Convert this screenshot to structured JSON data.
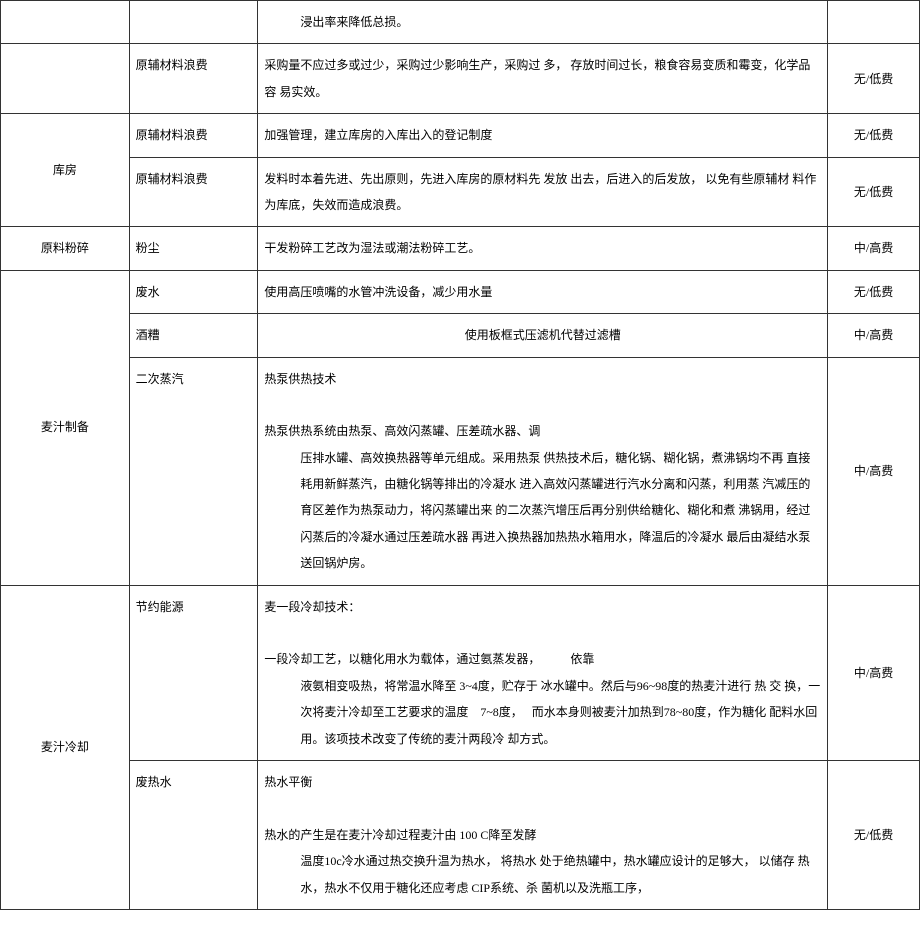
{
  "rows": [
    {
      "col1": "",
      "col2": "",
      "col3_lines": [
        "浸出率来降低总损。"
      ],
      "col3_indent": true,
      "col4": ""
    },
    {
      "col1": "",
      "col2": "原辅材料浪费",
      "col3_lines": [
        "采购量不应过多或过少，采购过少影响生产，采购过 多， 存放时间过长，粮食容易变质和霉变，化学品容 易实效。"
      ],
      "col3_indent": false,
      "col4": "无/低费"
    },
    {
      "col1": "库房",
      "col1_rowspan": 2,
      "col2": "原辅材料浪费",
      "col3_lines": [
        "加强管理，建立库房的入库出入的登记制度"
      ],
      "col3_indent": false,
      "col4": "无/低费"
    },
    {
      "col2": "原辅材料浪费",
      "col3_lines": [
        "发料时本着先进、先出原则，先进入库房的原材料先 发放 出去，后进入的后发放， 以免有些原辅材 料作 为库底，失效而造成浪费。"
      ],
      "col3_indent": false,
      "col4": "无/低费"
    },
    {
      "col1": "原料粉碎",
      "col2": "粉尘",
      "col3_lines": [
        "干发粉碎工艺改为湿法或潮法粉碎工艺。"
      ],
      "col3_indent": false,
      "col4": "中/高费"
    },
    {
      "col1": "麦汁制备",
      "col1_rowspan": 3,
      "col2": "废水",
      "col3_lines": [
        "使用高压喷嘴的水管冲洗设备，减少用水量"
      ],
      "col3_indent": false,
      "col4": "无/低费"
    },
    {
      "col2": "酒糟",
      "col3_lines": [
        "使用板框式压滤机代替过滤槽"
      ],
      "col3_center": true,
      "col4": "中/高费"
    },
    {
      "col2": "二次蒸汽",
      "col3_header": "热泵供热技术",
      "col3_subheader": "热泵供热系统由热泵、高效闪蒸罐、压差疏水器、调",
      "col3_lines": [
        "压排水罐、高效换热器等单元组成。采用热泵 供热技术后，糖化锅、糊化锅，煮沸锅均不再 直接耗用新鲜蒸汽，由糖化锅等排出的冷凝水 进入高效闪蒸罐进行汽水分离和闪蒸，利用蒸 汽减压的育区差作为热泵动力，将闪蒸罐出来 的二次蒸汽增压后再分别供给糖化、糊化和煮 沸锅用，经过闪蒸后的冷凝水通过压差疏水器 再进入换热器加热热水箱用水，降温后的冷凝水 最后由凝结水泵送回锅炉房。"
      ],
      "col3_indent": true,
      "col4": "中/高费"
    },
    {
      "col1": "麦汁冷却",
      "col1_rowspan": 2,
      "col2": "节约能源",
      "col3_header": "麦一段冷却技术：",
      "col3_header2": "",
      "col3_subheader": "一段冷却工艺，以糖化用水为载体，通过氨蒸发器，　　　依靠",
      "col3_lines": [
        "液氨相变吸热，将常温水降至 3~4度，贮存于 冰水罐中。然后与96~98度的热麦汁进行 热 交 换，一次将麦汁冷却至工艺要求的温度　7~8度，　 而水本身则被麦汁加热到78~80度，作为糖化 配料水回用。该项技术改变了传统的麦汁两段冷 却方式。"
      ],
      "col3_indent": true,
      "col4": "中/高费"
    },
    {
      "col2": "废热水",
      "col3_header": "热水平衡",
      "col3_subheader": "热水的产生是在麦汁冷却过程麦汁由 100 C降至发酵",
      "col3_lines": [
        "温度10c冷水通过热交换升温为热水， 将热水 处于绝热罐中，热水罐应设计的足够大， 以储存 热水，热水不仅用于糖化还应考虑 CIP系统、杀 菌机以及洗瓶工序，"
      ],
      "col3_indent": true,
      "col4": "无/低费"
    }
  ]
}
